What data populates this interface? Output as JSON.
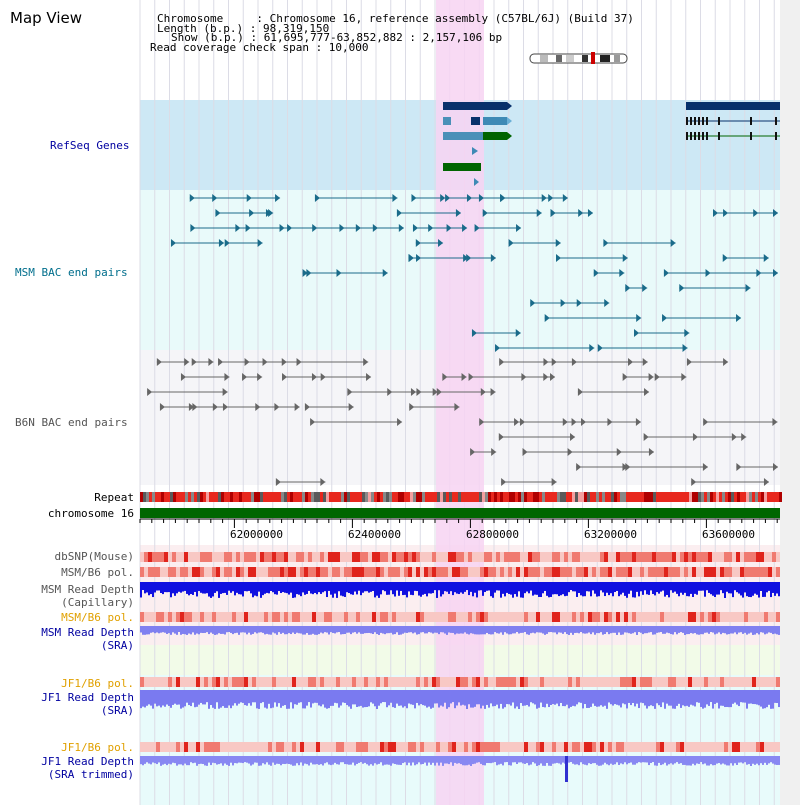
{
  "page": {
    "title": "Map View",
    "header": {
      "chromosome_line": "Chromosome     : Chromosome 16, reference assembly (C57BL/6J) (Build 37)",
      "length_line": "Length (b.p.) : 98,319,150",
      "show_line": "Show (b.p.) : 61,695,777-63,852,882 : 2,157,106 bp",
      "span_line": "Read coverage check span : 10,000"
    }
  },
  "tracks": {
    "refseq": "RefSeq Genes",
    "msm_bac": "MSM BAC end pairs",
    "b6n_bac": "B6N BAC end pairs",
    "repeat": "Repeat",
    "chromosome": "chromosome 16",
    "dbsnp": "dbSNP(Mouse)",
    "msm_b6_pol_1": "MSM/B6 pol.",
    "msm_depth_cap_1": "MSM Read Depth",
    "msm_depth_cap_2": "(Capillary)",
    "msm_b6_pol_2": "MSM/B6 pol.",
    "msm_depth_sra_1": "MSM Read Depth",
    "msm_depth_sra_2": "(SRA)",
    "jf1_b6_pol_1": "JF1/B6 pol.",
    "jf1_depth_sra_1": "JF1 Read Depth",
    "jf1_depth_sra_2": "(SRA)",
    "jf1_b6_pol_2": "JF1/B6 pol.",
    "jf1_depth_trim_1": "JF1 Read Depth",
    "jf1_depth_trim_2": "(SRA trimmed)"
  },
  "axis": {
    "ticks": [
      "62000000",
      "62400000",
      "62800000",
      "63200000",
      "63600000"
    ]
  },
  "colors": {
    "highlight": "#f7d4f2",
    "refseq_bg": "#cde8f5",
    "msm_bac_bg": "#e9fafa",
    "b6n_bac_bg": "#f5f5f8",
    "msm_label": "#006e8c",
    "b6n_label": "#555555",
    "pol_label": "#e0a000",
    "depth_label": "#0000a0",
    "chrom_green": "#006600"
  }
}
